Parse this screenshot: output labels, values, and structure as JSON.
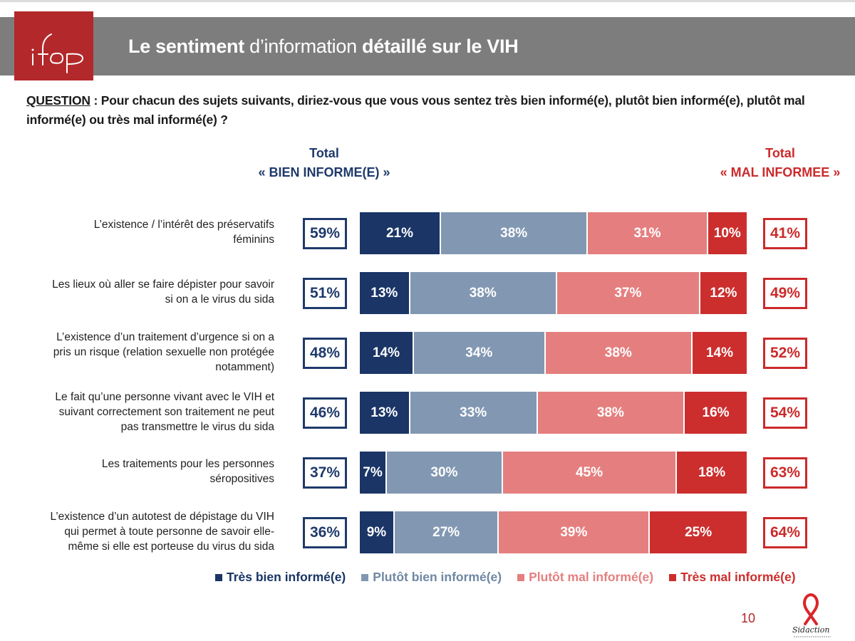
{
  "header": {
    "title_part1": "Le sentiment",
    "title_part2": " d’information ",
    "title_part3": "détaillé sur le VIH",
    "logo_text": "ifop"
  },
  "question": {
    "label": "QUESTION",
    "text": " : Pour chacun des sujets suivants, diriez-vous que vous vous sentez très bien informé(e), plutôt bien informé(e), plutôt mal informé(e) ou très mal informé(e) ?"
  },
  "totals": {
    "left_line1": "Total",
    "left_line2": "« BIEN INFORME(E) »",
    "right_line1": "Total",
    "right_line2": "« MAL INFORMEE »"
  },
  "colors": {
    "tres_bien": "#1a3566",
    "plutot_bien": "#8298b2",
    "plutot_mal": "#e57f7f",
    "tres_mal": "#cc2e2e",
    "brand_red": "#b3282b",
    "header_gray": "#7d7d7d"
  },
  "chart_data": {
    "type": "bar",
    "orientation": "horizontal-stacked-100",
    "title": "Le sentiment d’information détaillé sur le VIH",
    "xlabel": "",
    "ylabel": "",
    "xlim": [
      0,
      100
    ],
    "grid": false,
    "legend_position": "bottom",
    "categories": [
      "L’existence / l’intérêt des préservatifs féminins",
      "Les lieux où aller se faire dépister pour savoir si on a le virus du sida",
      "L’existence d’un traitement d’urgence si on a pris un risque (relation sexuelle non protégée notamment)",
      "Le fait qu’une personne vivant avec le VIH et suivant correctement son traitement ne peut pas transmettre le virus du sida",
      "Les traitements pour les personnes séropositives",
      "L’existence d’un autotest de dépistage du VIH qui permet à toute personne de savoir elle-même si elle est porteuse du virus du sida"
    ],
    "series": [
      {
        "name": "Très bien informé(e)",
        "color": "#1a3566",
        "values": [
          21,
          13,
          14,
          13,
          7,
          9
        ]
      },
      {
        "name": "Plutôt bien informé(e)",
        "color": "#8298b2",
        "values": [
          38,
          38,
          34,
          33,
          30,
          27
        ]
      },
      {
        "name": "Plutôt mal informé(e)",
        "color": "#e57f7f",
        "values": [
          31,
          37,
          38,
          38,
          45,
          39
        ]
      },
      {
        "name": "Très mal informé(e)",
        "color": "#cc2e2e",
        "values": [
          10,
          12,
          14,
          16,
          18,
          25
        ]
      }
    ],
    "total_bien_informe": [
      59,
      51,
      48,
      46,
      37,
      36
    ],
    "total_mal_informe": [
      41,
      49,
      52,
      54,
      63,
      64
    ],
    "legend": [
      {
        "label": "Très bien informé(e)",
        "color": "#1a3566"
      },
      {
        "label": "Plutôt bien informé(e)",
        "color": "#8298b2"
      },
      {
        "label": "Plutôt mal informé(e)",
        "color": "#e57f7f"
      },
      {
        "label": "Très mal informé(e)",
        "color": "#cc2e2e"
      }
    ]
  },
  "row_labels": [
    [
      "L’existence / l’intérêt des préservatifs",
      "féminins"
    ],
    [
      "Les lieux où aller se faire dépister pour savoir",
      "si on a le virus du sida"
    ],
    [
      "L’existence d’un traitement d’urgence si on a",
      "pris un risque (relation sexuelle non protégée",
      "notamment)"
    ],
    [
      "Le fait qu’une personne vivant avec le VIH et",
      "suivant correctement son traitement ne peut",
      "pas transmettre le virus du sida"
    ],
    [
      "Les traitements pour les personnes",
      "séropositives"
    ],
    [
      "L’existence d’un autotest de dépistage du VIH",
      "qui permet à toute personne de savoir elle-",
      "même si elle est porteuse du virus du sida"
    ]
  ],
  "footer": {
    "page_number": "10",
    "sponsor_logo_text": "Sidaction"
  }
}
